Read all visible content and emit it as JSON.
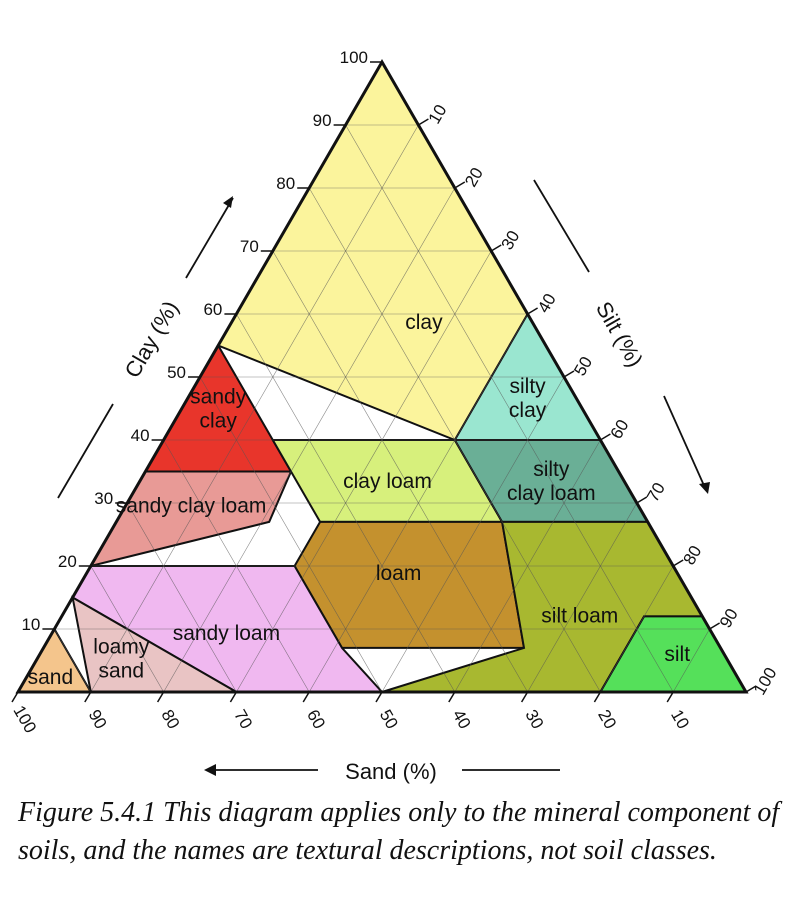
{
  "diagram": {
    "axes": {
      "clay": {
        "title": "Clay (%)",
        "ticks": [
          "10",
          "20",
          "30",
          "40",
          "50",
          "60",
          "70",
          "80",
          "90",
          "100"
        ]
      },
      "silt": {
        "title": "Silt (%)",
        "ticks": [
          "10",
          "20",
          "30",
          "40",
          "50",
          "60",
          "70",
          "80",
          "90",
          "100"
        ]
      },
      "sand": {
        "title": "Sand (%)",
        "ticks": [
          "100",
          "90",
          "80",
          "70",
          "60",
          "50",
          "40",
          "30",
          "20",
          "10"
        ]
      }
    },
    "regions": [
      {
        "id": "clay",
        "label_lines": [
          "clay"
        ],
        "color": "#fbf49c",
        "vertices": [
          [
            0,
            100,
            0
          ],
          [
            45,
            55,
            0
          ],
          [
            20,
            40,
            40
          ],
          [
            0,
            40,
            60
          ]
        ]
      },
      {
        "id": "sandy-clay",
        "label_lines": [
          "sandy",
          "clay"
        ],
        "color": "#e8352b",
        "vertices": [
          [
            45,
            55,
            0
          ],
          [
            65,
            35,
            0
          ],
          [
            45,
            35,
            20
          ],
          [
            45,
            55,
            0
          ]
        ]
      },
      {
        "id": "silty-clay",
        "label_lines": [
          "silty",
          "clay"
        ],
        "color": "#9ae6d0",
        "vertices": [
          [
            0,
            60,
            40
          ],
          [
            0,
            40,
            60
          ],
          [
            20,
            40,
            40
          ]
        ]
      },
      {
        "id": "sandy-clay-loam",
        "label_lines": [
          "sandy clay loam"
        ],
        "color": "#e89a96",
        "vertices": [
          [
            65,
            35,
            0
          ],
          [
            45,
            35,
            20
          ],
          [
            52,
            27,
            21
          ],
          [
            80,
            20,
            0
          ]
        ]
      },
      {
        "id": "clay-loam",
        "label_lines": [
          "clay loam"
        ],
        "color": "#d7f07c",
        "vertices": [
          [
            45,
            27,
            28
          ],
          [
            45,
            40,
            15
          ],
          [
            20,
            40,
            40
          ],
          [
            20,
            27,
            53
          ]
        ]
      },
      {
        "id": "silty-clay-loam",
        "label_lines": [
          "silty",
          "clay loam"
        ],
        "color": "#6aaf96",
        "vertices": [
          [
            20,
            40,
            40
          ],
          [
            0,
            40,
            60
          ],
          [
            0,
            27,
            73
          ],
          [
            20,
            27,
            53
          ]
        ]
      },
      {
        "id": "loam",
        "label_lines": [
          "loam"
        ],
        "color": "#c4912e",
        "vertices": [
          [
            45,
            27,
            28
          ],
          [
            20,
            27,
            53
          ],
          [
            27,
            7,
            66
          ],
          [
            52,
            7,
            41
          ],
          [
            52,
            20,
            28
          ]
        ]
      },
      {
        "id": "silt-loam",
        "label_lines": [
          "silt loam"
        ],
        "color": "#a8b830",
        "vertices": [
          [
            20,
            27,
            53
          ],
          [
            0,
            27,
            73
          ],
          [
            0,
            12,
            88
          ],
          [
            8,
            12,
            80
          ],
          [
            20,
            0,
            80
          ],
          [
            50,
            0,
            50
          ],
          [
            27,
            7,
            66
          ]
        ]
      },
      {
        "id": "silt",
        "label_lines": [
          "silt"
        ],
        "color": "#55e05a",
        "vertices": [
          [
            20,
            0,
            80
          ],
          [
            8,
            12,
            80
          ],
          [
            0,
            12,
            88
          ],
          [
            0,
            0,
            100
          ]
        ]
      },
      {
        "id": "sandy-loam",
        "label_lines": [
          "sandy loam"
        ],
        "color": "#f0b8f0",
        "vertices": [
          [
            80,
            20,
            0
          ],
          [
            52,
            20,
            28
          ],
          [
            52,
            7,
            41
          ],
          [
            50,
            0,
            50
          ],
          [
            70,
            0,
            30
          ],
          [
            85,
            15,
            0
          ]
        ]
      },
      {
        "id": "loamy-sand",
        "label_lines": [
          "loamy",
          "sand"
        ],
        "color": "#e9c4c4",
        "vertices": [
          [
            85,
            15,
            0
          ],
          [
            70,
            0,
            30
          ],
          [
            90,
            0,
            10
          ]
        ]
      },
      {
        "id": "sand",
        "label_lines": [
          "sand"
        ],
        "color": "#f4c58c",
        "vertices": [
          [
            90,
            10,
            0
          ],
          [
            100,
            0,
            0
          ],
          [
            90,
            0,
            10
          ]
        ]
      }
    ]
  },
  "caption": {
    "text": "Figure 5.4.1 This diagram applies only to the mineral component of soils, and the names are textural descriptions, not soil classes."
  }
}
